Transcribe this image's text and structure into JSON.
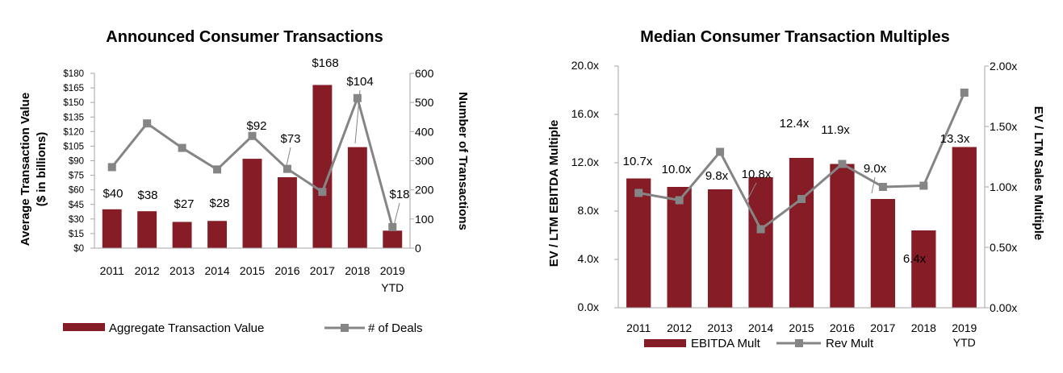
{
  "colors": {
    "bar": "#861c26",
    "line": "#858585",
    "axis": "#a6a6a6"
  },
  "chart_data": [
    {
      "type": "bar+line",
      "title": "Announced Consumer Transactions",
      "categories": [
        "2011",
        "2012",
        "2013",
        "2014",
        "2015",
        "2016",
        "2017",
        "2018",
        "2019"
      ],
      "category_sublabels": [
        "",
        "",
        "",
        "",
        "",
        "",
        "",
        "",
        "YTD"
      ],
      "y_left": {
        "label_line1": "Average Transaction Value",
        "label_line2": "($ in billions)",
        "range": [
          0,
          180
        ],
        "ticks": [
          "$0",
          "$15",
          "$30",
          "$45",
          "$60",
          "$75",
          "$90",
          "$105",
          "$120",
          "$135",
          "$150",
          "$165",
          "$180"
        ]
      },
      "y_right": {
        "label": "Number of Transactions",
        "range": [
          0,
          600
        ],
        "ticks": [
          "0",
          "100",
          "200",
          "300",
          "400",
          "500",
          "600"
        ]
      },
      "series": [
        {
          "name": "Aggregate Transaction Value",
          "type": "bar",
          "axis": "left",
          "values": [
            40,
            38,
            27,
            28,
            92,
            73,
            168,
            104,
            18
          ],
          "data_labels": [
            "$40",
            "$38",
            "$27",
            "$28",
            "$92",
            "$73",
            "$168",
            "$104",
            "$18"
          ]
        },
        {
          "name": "# of Deals",
          "type": "line",
          "axis": "right",
          "values": [
            278,
            428,
            344,
            270,
            385,
            272,
            193,
            515,
            72
          ]
        }
      ]
    },
    {
      "type": "bar+line",
      "title": "Median Consumer Transaction Multiples",
      "categories": [
        "2011",
        "2012",
        "2013",
        "2014",
        "2015",
        "2016",
        "2017",
        "2018",
        "2019"
      ],
      "category_sublabels": [
        "",
        "",
        "",
        "",
        "",
        "",
        "",
        "",
        "YTD"
      ],
      "y_left": {
        "label": "EV / LTM EBITDA Multiple",
        "range": [
          0,
          20
        ],
        "ticks": [
          "0.0x",
          "4.0x",
          "8.0x",
          "12.0x",
          "16.0x",
          "20.0x"
        ]
      },
      "y_right": {
        "label": "EV / LTM Sales Multiple",
        "range": [
          0,
          2
        ],
        "ticks": [
          "0.00x",
          "0.50x",
          "1.00x",
          "1.50x",
          "2.00x"
        ]
      },
      "series": [
        {
          "name": "EBITDA Mult",
          "type": "bar",
          "axis": "left",
          "values": [
            10.7,
            10.0,
            9.8,
            10.8,
            12.4,
            11.9,
            9.0,
            6.4,
            13.3
          ],
          "data_labels": [
            "10.7x",
            "10.0x",
            "9.8x",
            "10.8x",
            "12.4x",
            "11.9x",
            "9.0x",
            "6.4x",
            "13.3x"
          ]
        },
        {
          "name": "Rev Mult",
          "type": "line",
          "axis": "right",
          "values": [
            0.95,
            0.89,
            1.29,
            0.65,
            0.9,
            1.19,
            1.0,
            1.01,
            1.78
          ]
        }
      ]
    }
  ]
}
